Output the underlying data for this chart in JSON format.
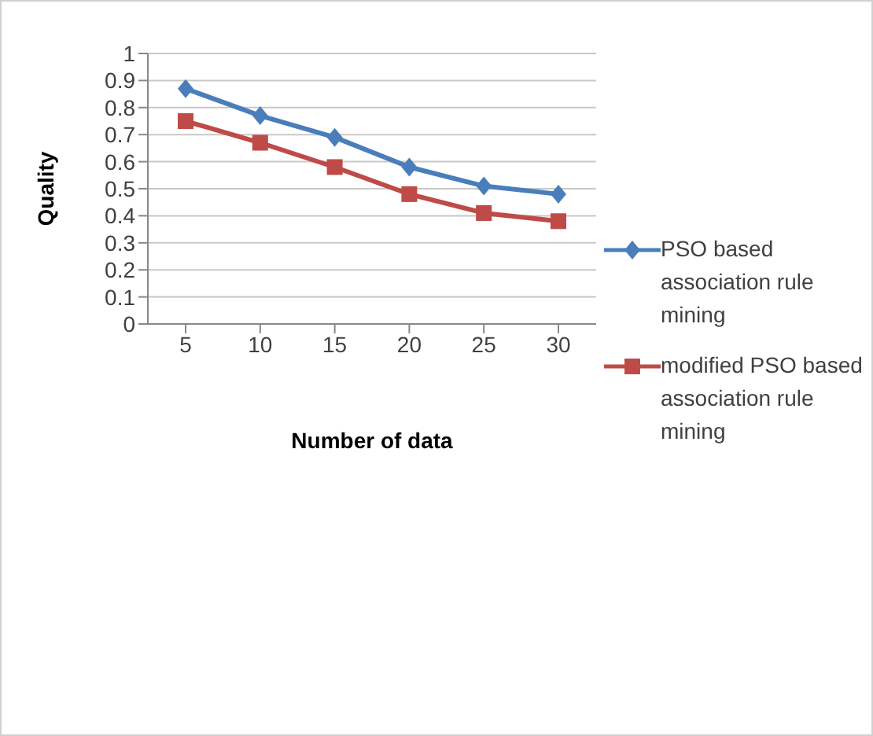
{
  "chart_data": {
    "type": "line",
    "xlabel": "Number of data",
    "ylabel": "Quality",
    "categories": [
      "5",
      "10",
      "15",
      "20",
      "25",
      "30"
    ],
    "series": [
      {
        "name": "PSO based association rule mining",
        "color": "#4a7ebb",
        "marker": "diamond",
        "values": [
          0.87,
          0.77,
          0.69,
          0.58,
          0.51,
          0.48
        ]
      },
      {
        "name": "modified PSO based association rule mining",
        "color": "#be4b48",
        "marker": "square",
        "values": [
          0.75,
          0.67,
          0.58,
          0.48,
          0.41,
          0.38
        ]
      }
    ],
    "ylim": [
      0,
      1
    ],
    "yticks": [
      0,
      0.1,
      0.2,
      0.3,
      0.4,
      0.5,
      0.6,
      0.7,
      0.8,
      0.9,
      1
    ],
    "grid": "y",
    "legend": "right",
    "line_style": "solid"
  }
}
